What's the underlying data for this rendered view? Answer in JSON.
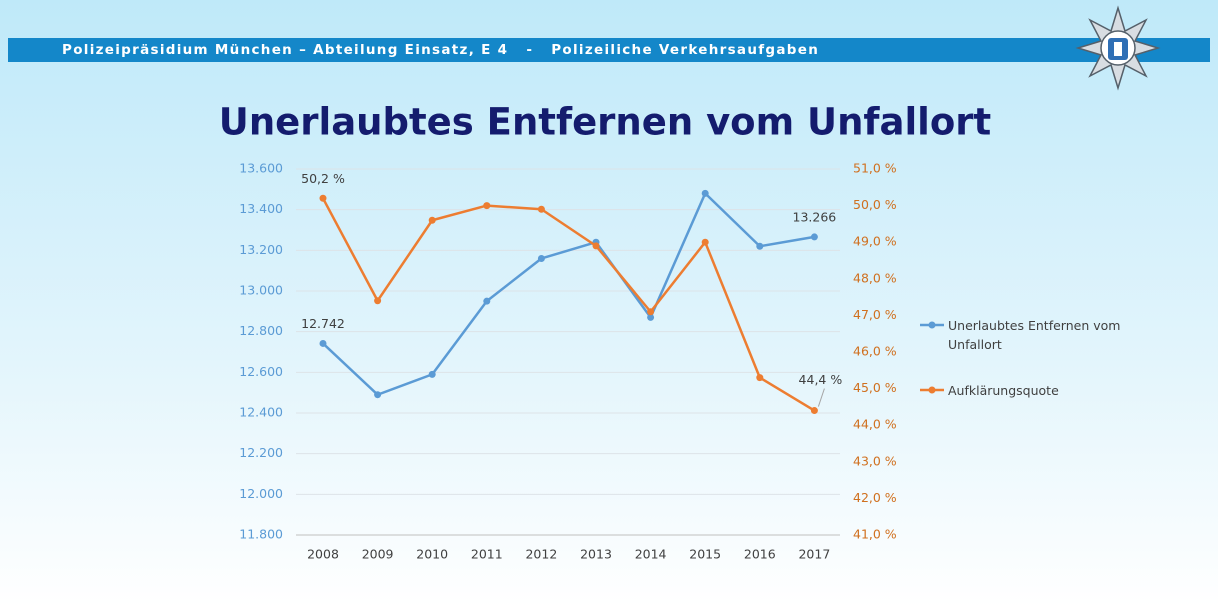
{
  "header": {
    "text": "Polizeipräsidium München – Abteilung Einsatz, E 4   -   Polizeiliche Verkehrsaufgaben"
  },
  "chart_data": {
    "type": "line",
    "title": "Unerlaubtes Entfernen vom Unfallort",
    "categories": [
      "2008",
      "2009",
      "2010",
      "2011",
      "2012",
      "2013",
      "2014",
      "2015",
      "2016",
      "2017"
    ],
    "series": [
      {
        "name": "Unerlaubtes Entfernen vom Unfallort",
        "color": "#5b9bd5",
        "axis": "y",
        "values": [
          12742,
          12490,
          12590,
          12950,
          13160,
          13240,
          12870,
          13480,
          13220,
          13266
        ],
        "value_labels": [
          "12.742",
          null,
          null,
          null,
          null,
          null,
          null,
          null,
          null,
          "13.266"
        ]
      },
      {
        "name": "Aufklärungsquote",
        "color": "#ed7d31",
        "axis": "y2",
        "values": [
          50.2,
          47.4,
          49.6,
          50.0,
          49.9,
          48.9,
          47.1,
          49.0,
          45.3,
          44.4
        ],
        "value_labels": [
          "50,2 %",
          null,
          null,
          null,
          null,
          null,
          null,
          null,
          null,
          "44,4 %"
        ]
      }
    ],
    "ylim": [
      11800,
      13600
    ],
    "yticks": [
      {
        "value": 11800,
        "label": "11.800"
      },
      {
        "value": 12000,
        "label": "12.000"
      },
      {
        "value": 12200,
        "label": "12.200"
      },
      {
        "value": 12400,
        "label": "12.400"
      },
      {
        "value": 12600,
        "label": "12.600"
      },
      {
        "value": 12800,
        "label": "12.800"
      },
      {
        "value": 13000,
        "label": "13.000"
      },
      {
        "value": 13200,
        "label": "13.200"
      },
      {
        "value": 13400,
        "label": "13.400"
      },
      {
        "value": 13600,
        "label": "13.600"
      }
    ],
    "y2lim": [
      41,
      51
    ],
    "y2ticks": [
      {
        "value": 41,
        "label": "41,0 %"
      },
      {
        "value": 42,
        "label": "42,0 %"
      },
      {
        "value": 43,
        "label": "43,0 %"
      },
      {
        "value": 44,
        "label": "44,0 %"
      },
      {
        "value": 45,
        "label": "45,0 %"
      },
      {
        "value": 46,
        "label": "46,0 %"
      },
      {
        "value": 47,
        "label": "47,0 %"
      },
      {
        "value": 48,
        "label": "48,0 %"
      },
      {
        "value": 49,
        "label": "49,0 %"
      },
      {
        "value": 50,
        "label": "50,0 %"
      },
      {
        "value": 51,
        "label": "51,0 %"
      }
    ],
    "grid": true,
    "legend": "right"
  }
}
